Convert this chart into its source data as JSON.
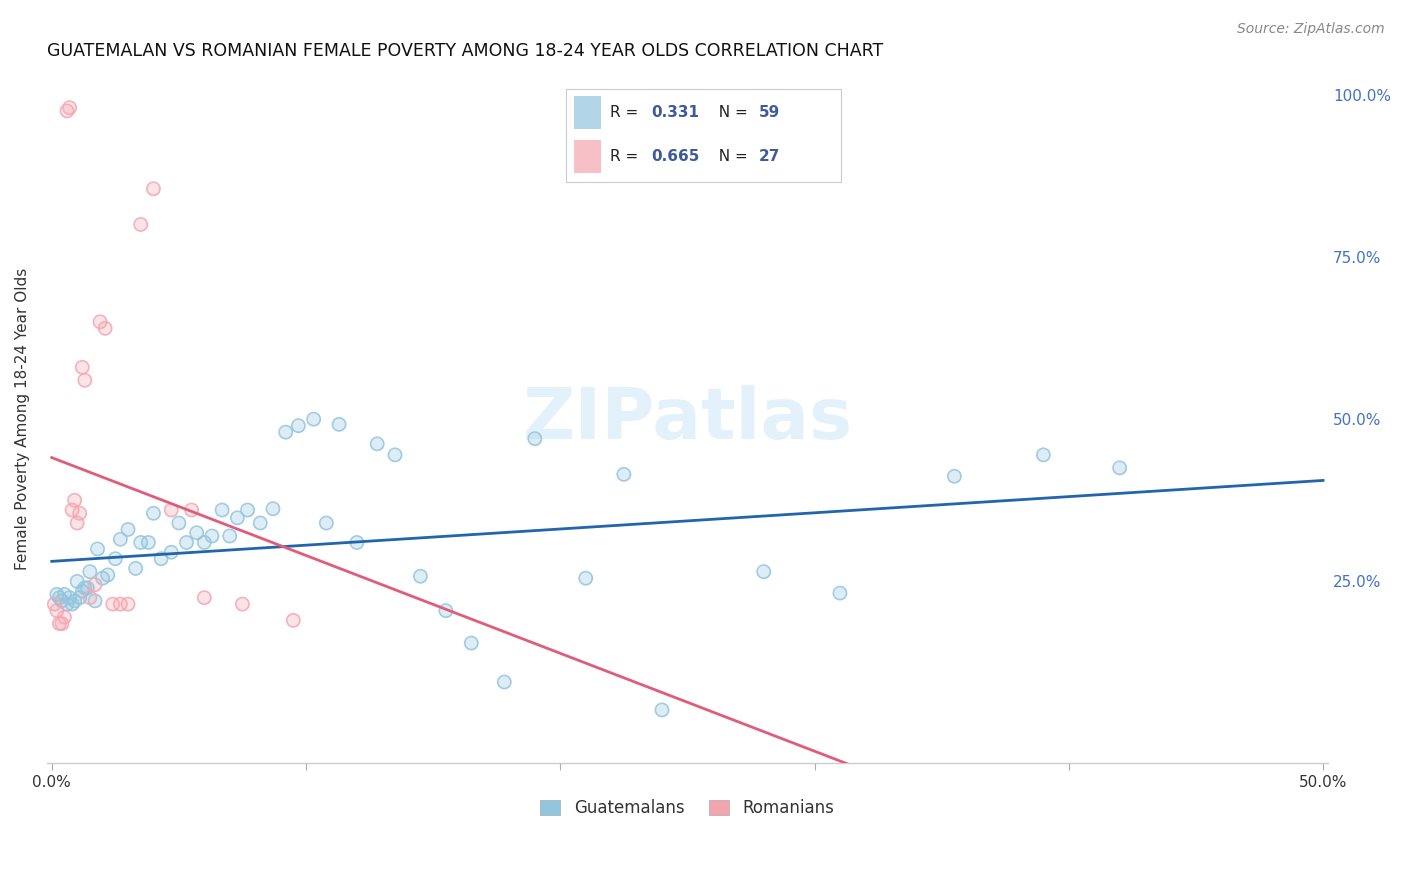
{
  "title": "GUATEMALAN VS ROMANIAN FEMALE POVERTY AMONG 18-24 YEAR OLDS CORRELATION CHART",
  "source": "Source: ZipAtlas.com",
  "ylabel": "Female Poverty Among 18-24 Year Olds",
  "xlabel_guatemalans": "Guatemalans",
  "xlabel_romanians": "Romanians",
  "xlim": [
    0.0,
    0.5
  ],
  "ylim": [
    0.0,
    1.0
  ],
  "guatemalan_color": "#92c5de",
  "romanian_color": "#f4a6b0",
  "trendline_guatemalan_color": "#2166ac",
  "trendline_romanian_color": "#e05c7a",
  "legend_r_guatemalan": "0.331",
  "legend_n_guatemalan": "59",
  "legend_r_romanian": "0.665",
  "legend_n_romanian": "27",
  "watermark_text": "ZIPatlas",
  "guat_x": [
    0.002,
    0.003,
    0.004,
    0.005,
    0.006,
    0.007,
    0.008,
    0.009,
    0.01,
    0.011,
    0.012,
    0.013,
    0.014,
    0.015,
    0.017,
    0.018,
    0.02,
    0.022,
    0.025,
    0.027,
    0.03,
    0.033,
    0.035,
    0.038,
    0.04,
    0.043,
    0.047,
    0.05,
    0.053,
    0.057,
    0.06,
    0.063,
    0.067,
    0.07,
    0.073,
    0.077,
    0.082,
    0.087,
    0.092,
    0.097,
    0.103,
    0.108,
    0.113,
    0.12,
    0.128,
    0.135,
    0.145,
    0.155,
    0.165,
    0.178,
    0.19,
    0.21,
    0.225,
    0.24,
    0.28,
    0.31,
    0.355,
    0.39,
    0.42
  ],
  "guat_y": [
    0.23,
    0.225,
    0.22,
    0.23,
    0.215,
    0.225,
    0.215,
    0.22,
    0.25,
    0.225,
    0.235,
    0.24,
    0.24,
    0.265,
    0.22,
    0.3,
    0.255,
    0.26,
    0.285,
    0.315,
    0.33,
    0.27,
    0.31,
    0.31,
    0.355,
    0.285,
    0.295,
    0.34,
    0.31,
    0.325,
    0.31,
    0.32,
    0.36,
    0.32,
    0.348,
    0.36,
    0.34,
    0.362,
    0.48,
    0.49,
    0.5,
    0.34,
    0.492,
    0.31,
    0.462,
    0.445,
    0.258,
    0.205,
    0.155,
    0.095,
    0.47,
    0.255,
    0.415,
    0.052,
    0.265,
    0.232,
    0.412,
    0.445,
    0.425
  ],
  "rom_x": [
    0.001,
    0.002,
    0.003,
    0.004,
    0.005,
    0.006,
    0.007,
    0.008,
    0.009,
    0.01,
    0.011,
    0.012,
    0.013,
    0.015,
    0.017,
    0.019,
    0.021,
    0.024,
    0.027,
    0.03,
    0.035,
    0.04,
    0.047,
    0.055,
    0.06,
    0.075,
    0.095
  ],
  "rom_y": [
    0.215,
    0.205,
    0.185,
    0.185,
    0.195,
    0.975,
    0.98,
    0.36,
    0.375,
    0.34,
    0.355,
    0.58,
    0.56,
    0.225,
    0.245,
    0.65,
    0.64,
    0.215,
    0.215,
    0.215,
    0.8,
    0.855,
    0.36,
    0.36,
    0.225,
    0.215,
    0.19
  ]
}
